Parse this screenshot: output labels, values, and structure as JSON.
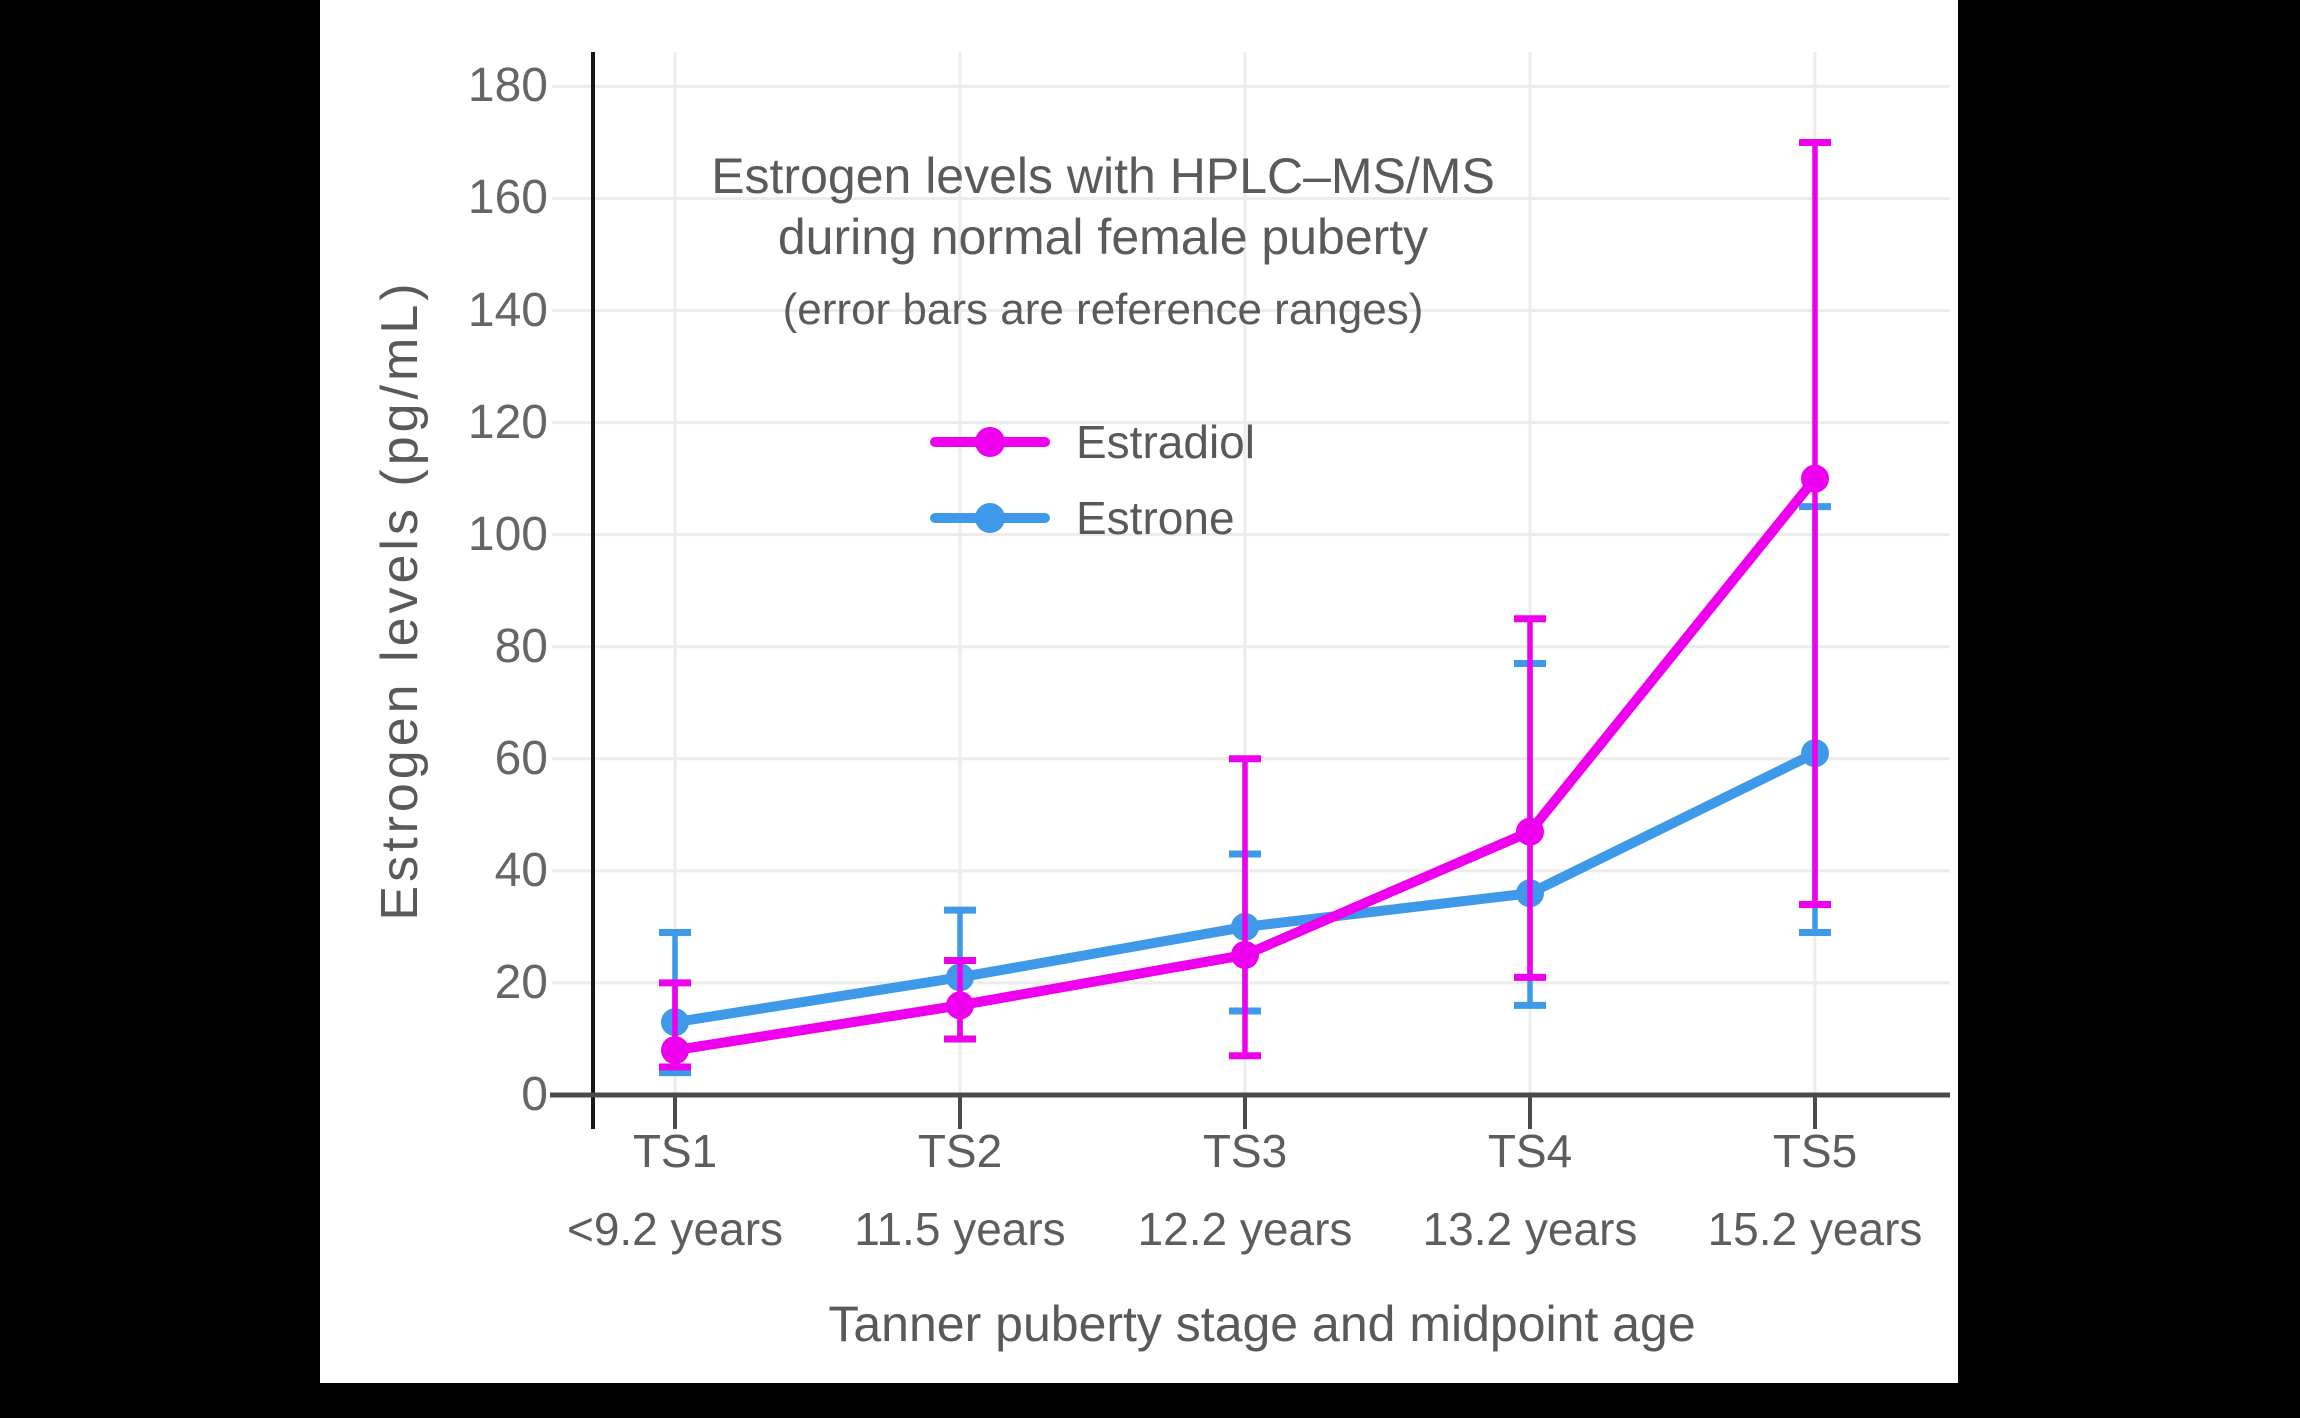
{
  "chart_data": {
    "type": "line",
    "title_line1": "Estrogen levels with HPLC–MS/MS",
    "title_line2": "during normal female puberty",
    "subtitle": "(error bars are reference ranges)",
    "ylabel": "Estrogen levels (pg/mL)",
    "xlabel": "Tanner puberty stage and midpoint age",
    "categories": [
      "TS1",
      "TS2",
      "TS3",
      "TS4",
      "TS5"
    ],
    "age_labels": [
      "<9.2 years",
      "11.5 years",
      "12.2 years",
      "13.2 years",
      "15.2 years"
    ],
    "yticks": [
      0,
      20,
      40,
      60,
      80,
      100,
      120,
      140,
      160,
      180
    ],
    "ylim": [
      0,
      187
    ],
    "grid": "on",
    "legend_position": "upper-center-inside",
    "error_bars": "reference ranges",
    "series": [
      {
        "name": "Estradiol",
        "color": "#EE00EE",
        "values": [
          8,
          16,
          25,
          47,
          110
        ],
        "range_low": [
          5,
          10,
          7,
          21,
          34
        ],
        "range_high": [
          20,
          24,
          60,
          85,
          170
        ]
      },
      {
        "name": "Estrone",
        "color": "#3E9AE9",
        "values": [
          13,
          21,
          30,
          36,
          61
        ],
        "range_low": [
          4,
          10,
          15,
          16,
          29
        ],
        "range_high": [
          29,
          33,
          43,
          77,
          105
        ]
      }
    ]
  }
}
